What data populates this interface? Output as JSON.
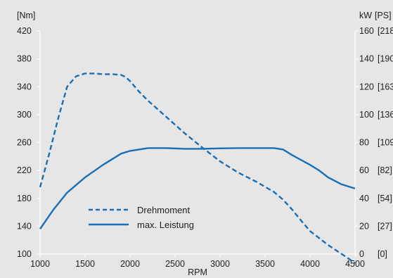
{
  "chart_data": {
    "type": "line",
    "xlabel": "RPM",
    "x_ticks": [
      "1000",
      "1500",
      "2000",
      "2500",
      "3000",
      "3500",
      "4000",
      "4500"
    ],
    "xlim": [
      1000,
      4500
    ],
    "left_axis": {
      "unit": "[Nm]",
      "ylim": [
        100,
        420
      ],
      "ticks": [
        "420",
        "380",
        "340",
        "300",
        "260",
        "220",
        "180",
        "140",
        "100"
      ]
    },
    "right_axis": {
      "unit_kw": "kW",
      "unit_ps": "[PS]",
      "ylim": [
        0,
        160
      ],
      "ticks_kw": [
        "160",
        "140",
        "120",
        "100",
        "80",
        "60",
        "40",
        "20",
        "0"
      ],
      "ticks_ps": [
        "[218]",
        "[190]",
        "[163]",
        "[136]",
        "[109]",
        "[82]",
        "[54]",
        "[27]",
        "[0]"
      ]
    },
    "series": [
      {
        "name": "Drehmoment",
        "axis": "left",
        "style": "dashed",
        "color": "#1a6fb5",
        "points": [
          [
            1000,
            196
          ],
          [
            1100,
            243
          ],
          [
            1200,
            294
          ],
          [
            1300,
            340
          ],
          [
            1400,
            355
          ],
          [
            1500,
            359
          ],
          [
            1600,
            359
          ],
          [
            1700,
            358
          ],
          [
            1800,
            358
          ],
          [
            1900,
            357
          ],
          [
            1950,
            354
          ],
          [
            2000,
            348
          ],
          [
            2100,
            333
          ],
          [
            2200,
            320
          ],
          [
            2400,
            297
          ],
          [
            2600,
            274
          ],
          [
            2800,
            253
          ],
          [
            3000,
            233
          ],
          [
            3200,
            217
          ],
          [
            3400,
            204
          ],
          [
            3600,
            189
          ],
          [
            3700,
            178
          ],
          [
            3800,
            164
          ],
          [
            3900,
            148
          ],
          [
            4000,
            133
          ],
          [
            4200,
            113
          ],
          [
            4400,
            96
          ],
          [
            4500,
            87
          ]
        ]
      },
      {
        "name": "max. Leistung",
        "axis": "right",
        "style": "solid",
        "color": "#1a6fb5",
        "points": [
          [
            1000,
            18
          ],
          [
            1150,
            32
          ],
          [
            1300,
            44
          ],
          [
            1500,
            55
          ],
          [
            1700,
            64
          ],
          [
            1900,
            72
          ],
          [
            2000,
            74
          ],
          [
            2200,
            76
          ],
          [
            2400,
            76
          ],
          [
            2600,
            75.5
          ],
          [
            2800,
            75.5
          ],
          [
            3000,
            75.8
          ],
          [
            3200,
            76
          ],
          [
            3400,
            76
          ],
          [
            3600,
            76
          ],
          [
            3700,
            75
          ],
          [
            3800,
            71
          ],
          [
            4000,
            64
          ],
          [
            4100,
            60
          ],
          [
            4200,
            55
          ],
          [
            4350,
            50
          ],
          [
            4500,
            47
          ]
        ]
      }
    ],
    "legend": {
      "placement": "bottom-left",
      "entries": [
        "Drehmoment",
        "max. Leistung"
      ]
    }
  }
}
